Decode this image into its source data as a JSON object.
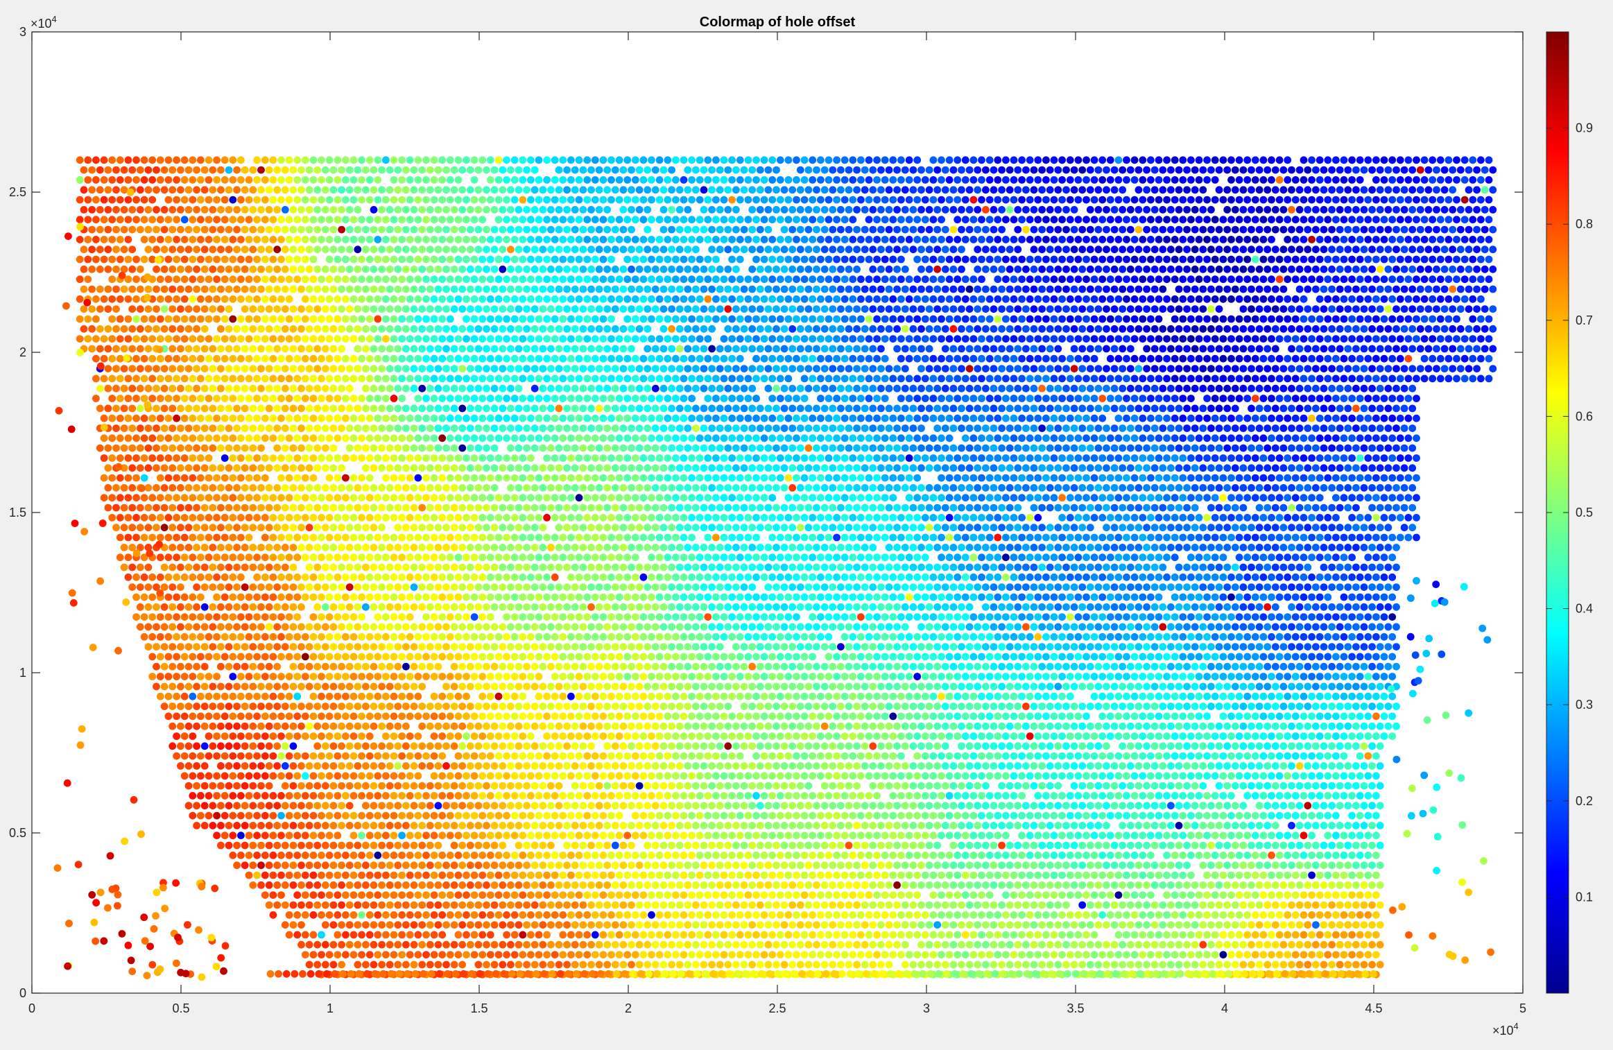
{
  "figure": {
    "background_color": "#f0f0f0",
    "axes_background_color": "#ffffff"
  },
  "chart_data": {
    "type": "scatter",
    "title": "Colormap of hole offset",
    "xlabel": "",
    "ylabel": "",
    "xlim": [
      0,
      50000
    ],
    "ylim": [
      0,
      30000
    ],
    "x_ticks": [
      0,
      5000,
      10000,
      15000,
      20000,
      25000,
      30000,
      35000,
      40000,
      45000,
      50000
    ],
    "x_tick_labels": [
      "0",
      "0.5",
      "1",
      "1.5",
      "2",
      "2.5",
      "3",
      "3.5",
      "4",
      "4.5",
      "5"
    ],
    "y_ticks": [
      0,
      5000,
      10000,
      15000,
      20000,
      25000,
      30000
    ],
    "y_tick_labels": [
      "0",
      "0.5",
      "1",
      "1.5",
      "2",
      "2.5",
      "3"
    ],
    "x_exponent_base": "×10",
    "x_exponent_power": "4",
    "y_exponent_base": "×10",
    "y_exponent_power": "4",
    "grid": false,
    "colormap": "jet",
    "colorbar": {
      "location": "right",
      "clim": [
        0,
        1
      ],
      "ticks": [
        0.1,
        0.2,
        0.3,
        0.4,
        0.5,
        0.6,
        0.7,
        0.8,
        0.9
      ],
      "tick_labels": [
        "0.1",
        "0.2",
        "0.3",
        "0.4",
        "0.5",
        "0.6",
        "0.7",
        "0.8",
        "0.9"
      ]
    },
    "sampled_points": [
      {
        "x": 2500,
        "y": 25500,
        "value": 0.8
      },
      {
        "x": 5000,
        "y": 22500,
        "value": 0.76
      },
      {
        "x": 8000,
        "y": 20000,
        "value": 0.66
      },
      {
        "x": 12000,
        "y": 24000,
        "value": 0.5
      },
      {
        "x": 15000,
        "y": 20000,
        "value": 0.38
      },
      {
        "x": 20000,
        "y": 25000,
        "value": 0.32
      },
      {
        "x": 25000,
        "y": 20000,
        "value": 0.28
      },
      {
        "x": 30000,
        "y": 22000,
        "value": 0.18
      },
      {
        "x": 35000,
        "y": 25000,
        "value": 0.12
      },
      {
        "x": 40000,
        "y": 22000,
        "value": 0.08
      },
      {
        "x": 44000,
        "y": 20000,
        "value": 0.16
      },
      {
        "x": 3000,
        "y": 15000,
        "value": 0.78
      },
      {
        "x": 6000,
        "y": 12000,
        "value": 0.76
      },
      {
        "x": 12000,
        "y": 14000,
        "value": 0.62
      },
      {
        "x": 18000,
        "y": 14000,
        "value": 0.52
      },
      {
        "x": 25000,
        "y": 14000,
        "value": 0.38
      },
      {
        "x": 35000,
        "y": 15000,
        "value": 0.26
      },
      {
        "x": 44000,
        "y": 13000,
        "value": 0.2
      },
      {
        "x": 6000,
        "y": 6000,
        "value": 0.82
      },
      {
        "x": 12000,
        "y": 7000,
        "value": 0.74
      },
      {
        "x": 18000,
        "y": 7000,
        "value": 0.64
      },
      {
        "x": 25000,
        "y": 7000,
        "value": 0.52
      },
      {
        "x": 35000,
        "y": 6000,
        "value": 0.42
      },
      {
        "x": 44000,
        "y": 6000,
        "value": 0.4
      },
      {
        "x": 9000,
        "y": 2000,
        "value": 0.8
      },
      {
        "x": 15000,
        "y": 1000,
        "value": 0.78
      },
      {
        "x": 25000,
        "y": 1500,
        "value": 0.64
      },
      {
        "x": 35000,
        "y": 1500,
        "value": 0.54
      },
      {
        "x": 44000,
        "y": 1000,
        "value": 0.7
      }
    ]
  }
}
